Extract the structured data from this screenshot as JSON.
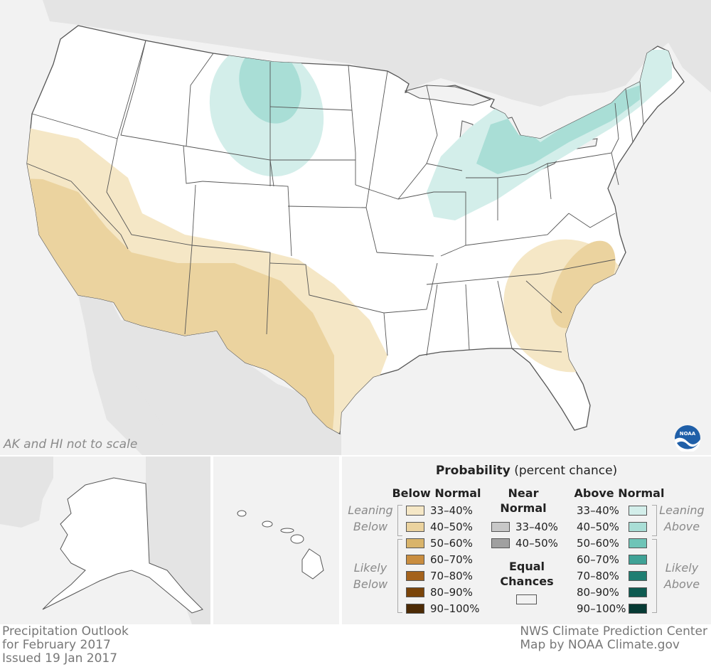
{
  "map": {
    "inset_note": "AK and HI not to scale",
    "colors": {
      "ocean": "#f2f2f2",
      "neighbor_land": "#e4e4e4",
      "us_land": "#ffffff",
      "state_border": "#555555"
    }
  },
  "legend": {
    "title_bold": "Probability",
    "title_rest": " (percent chance)",
    "below": {
      "header": "Below Normal",
      "leaning_label": [
        "Leaning",
        "Below"
      ],
      "likely_label": [
        "Likely",
        "Below"
      ],
      "items": [
        {
          "label": "33–40%",
          "color": "#f5e7c6"
        },
        {
          "label": "40–50%",
          "color": "#ebd39f"
        },
        {
          "label": "50–60%",
          "color": "#d9b46b"
        },
        {
          "label": "60–70%",
          "color": "#c98d3f"
        },
        {
          "label": "70–80%",
          "color": "#a4621c"
        },
        {
          "label": "80–90%",
          "color": "#7a4409"
        },
        {
          "label": "90–100%",
          "color": "#4c2a05"
        }
      ]
    },
    "near": {
      "header": [
        "Near",
        "Normal"
      ],
      "items": [
        {
          "label": "33–40%",
          "color": "#c8c8c8"
        },
        {
          "label": "40–50%",
          "color": "#a0a0a0"
        }
      ],
      "equal_header": [
        "Equal",
        "Chances"
      ],
      "equal_color": "#ffffff"
    },
    "above": {
      "header": "Above Normal",
      "leaning_label": [
        "Leaning",
        "Above"
      ],
      "likely_label": [
        "Likely",
        "Above"
      ],
      "items": [
        {
          "label": "33–40%",
          "color": "#d3eeea"
        },
        {
          "label": "40–50%",
          "color": "#a9ded6"
        },
        {
          "label": "50–60%",
          "color": "#6ec4b7"
        },
        {
          "label": "60–70%",
          "color": "#3fa296"
        },
        {
          "label": "70–80%",
          "color": "#1f7e72"
        },
        {
          "label": "80–90%",
          "color": "#0e5b51"
        },
        {
          "label": "90–100%",
          "color": "#063a34"
        }
      ]
    }
  },
  "footer": {
    "left": [
      "Precipitation Outlook",
      "for February 2017",
      "Issued 19 Jan 2017"
    ],
    "right": [
      "NWS Climate Prediction Center",
      "Map by NOAA Climate.gov"
    ]
  },
  "logo": {
    "text": "NOAA"
  }
}
